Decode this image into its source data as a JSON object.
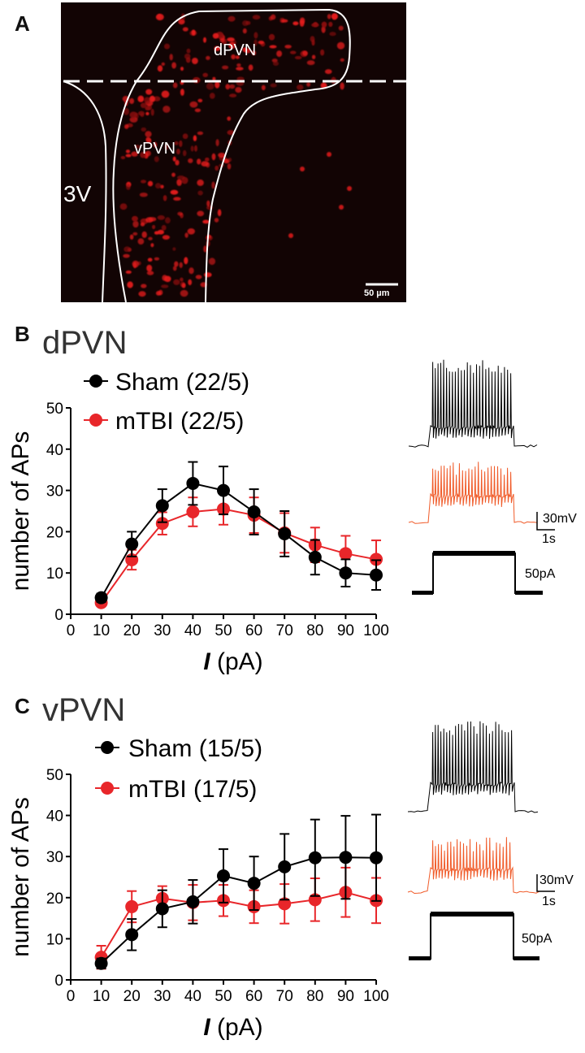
{
  "figure": {
    "panel_a": {
      "letter": "A",
      "labels": {
        "dpvn": "dPVN",
        "vpvn": "vPVN",
        "ventricle": "3V"
      },
      "scale_bar": "50 µm"
    }
  },
  "colors": {
    "sham": "#000000",
    "mtbi": "#e8262a",
    "trace_mtbi": "#f05a28",
    "tissue": "#120404",
    "cells": "#e31a1c"
  },
  "chart_data": [
    {
      "type": "line",
      "panel": "B",
      "title": "dPVN",
      "xlabel_italic": "I",
      "xlabel_rest": " (pA)",
      "ylabel": "number of APs",
      "x": [
        10,
        20,
        30,
        40,
        50,
        60,
        70,
        80,
        90,
        100
      ],
      "xlim": [
        0,
        100
      ],
      "ylim": [
        0,
        50
      ],
      "xticks": [
        "0",
        "10",
        "20",
        "30",
        "40",
        "50",
        "60",
        "70",
        "80",
        "90",
        "100"
      ],
      "yticks": [
        "0",
        "10",
        "20",
        "30",
        "40",
        "50"
      ],
      "series": [
        {
          "name": "Sham (22/5)",
          "color": "#000000",
          "values": [
            4,
            17,
            26.3,
            31.7,
            30,
            24.8,
            19.5,
            13.8,
            10,
            9.5
          ],
          "err": [
            1,
            3,
            4,
            5.2,
            5.8,
            5.5,
            5.5,
            4.2,
            3.3,
            3.6
          ]
        },
        {
          "name": "mTBI (22/5)",
          "color": "#e8262a",
          "values": [
            2.8,
            13.2,
            22,
            24.8,
            25.5,
            24,
            19.7,
            16.8,
            14.7,
            13.3
          ],
          "err": [
            0.8,
            2.4,
            2.7,
            3.5,
            3.8,
            4.3,
            4.8,
            4.2,
            4.3,
            4.6
          ]
        }
      ],
      "traces": {
        "amplitude": "30mV",
        "time": "1s",
        "current": "50pA"
      }
    },
    {
      "type": "line",
      "panel": "C",
      "title": "vPVN",
      "xlabel_italic": "I",
      "xlabel_rest": " (pA)",
      "ylabel": "number of APs",
      "x": [
        10,
        20,
        30,
        40,
        50,
        60,
        70,
        80,
        90,
        100
      ],
      "xlim": [
        0,
        100
      ],
      "ylim": [
        0,
        50
      ],
      "xticks": [
        "0",
        "10",
        "20",
        "30",
        "40",
        "50",
        "60",
        "70",
        "80",
        "90",
        "100"
      ],
      "yticks": [
        "0",
        "10",
        "20",
        "30",
        "40",
        "50"
      ],
      "series": [
        {
          "name": "Sham (15/5)",
          "color": "#000000",
          "values": [
            4,
            11,
            17.3,
            19,
            25.3,
            23.5,
            27.5,
            29.7,
            29.8,
            29.7
          ],
          "err": [
            1.2,
            3.8,
            4.5,
            5.3,
            6.5,
            6.5,
            8,
            9.3,
            10.1,
            10.5
          ]
        },
        {
          "name": "mTBI (17/5)",
          "color": "#e8262a",
          "values": [
            5.5,
            17.8,
            19.8,
            18.8,
            19.3,
            17.8,
            18.5,
            19.5,
            21.3,
            19.3
          ],
          "err": [
            2.8,
            3.8,
            3,
            4.3,
            3.8,
            4,
            4.8,
            5.2,
            6,
            5.5
          ]
        }
      ],
      "traces": {
        "amplitude": "30mV",
        "time": "1s",
        "current": "50pA"
      }
    }
  ]
}
